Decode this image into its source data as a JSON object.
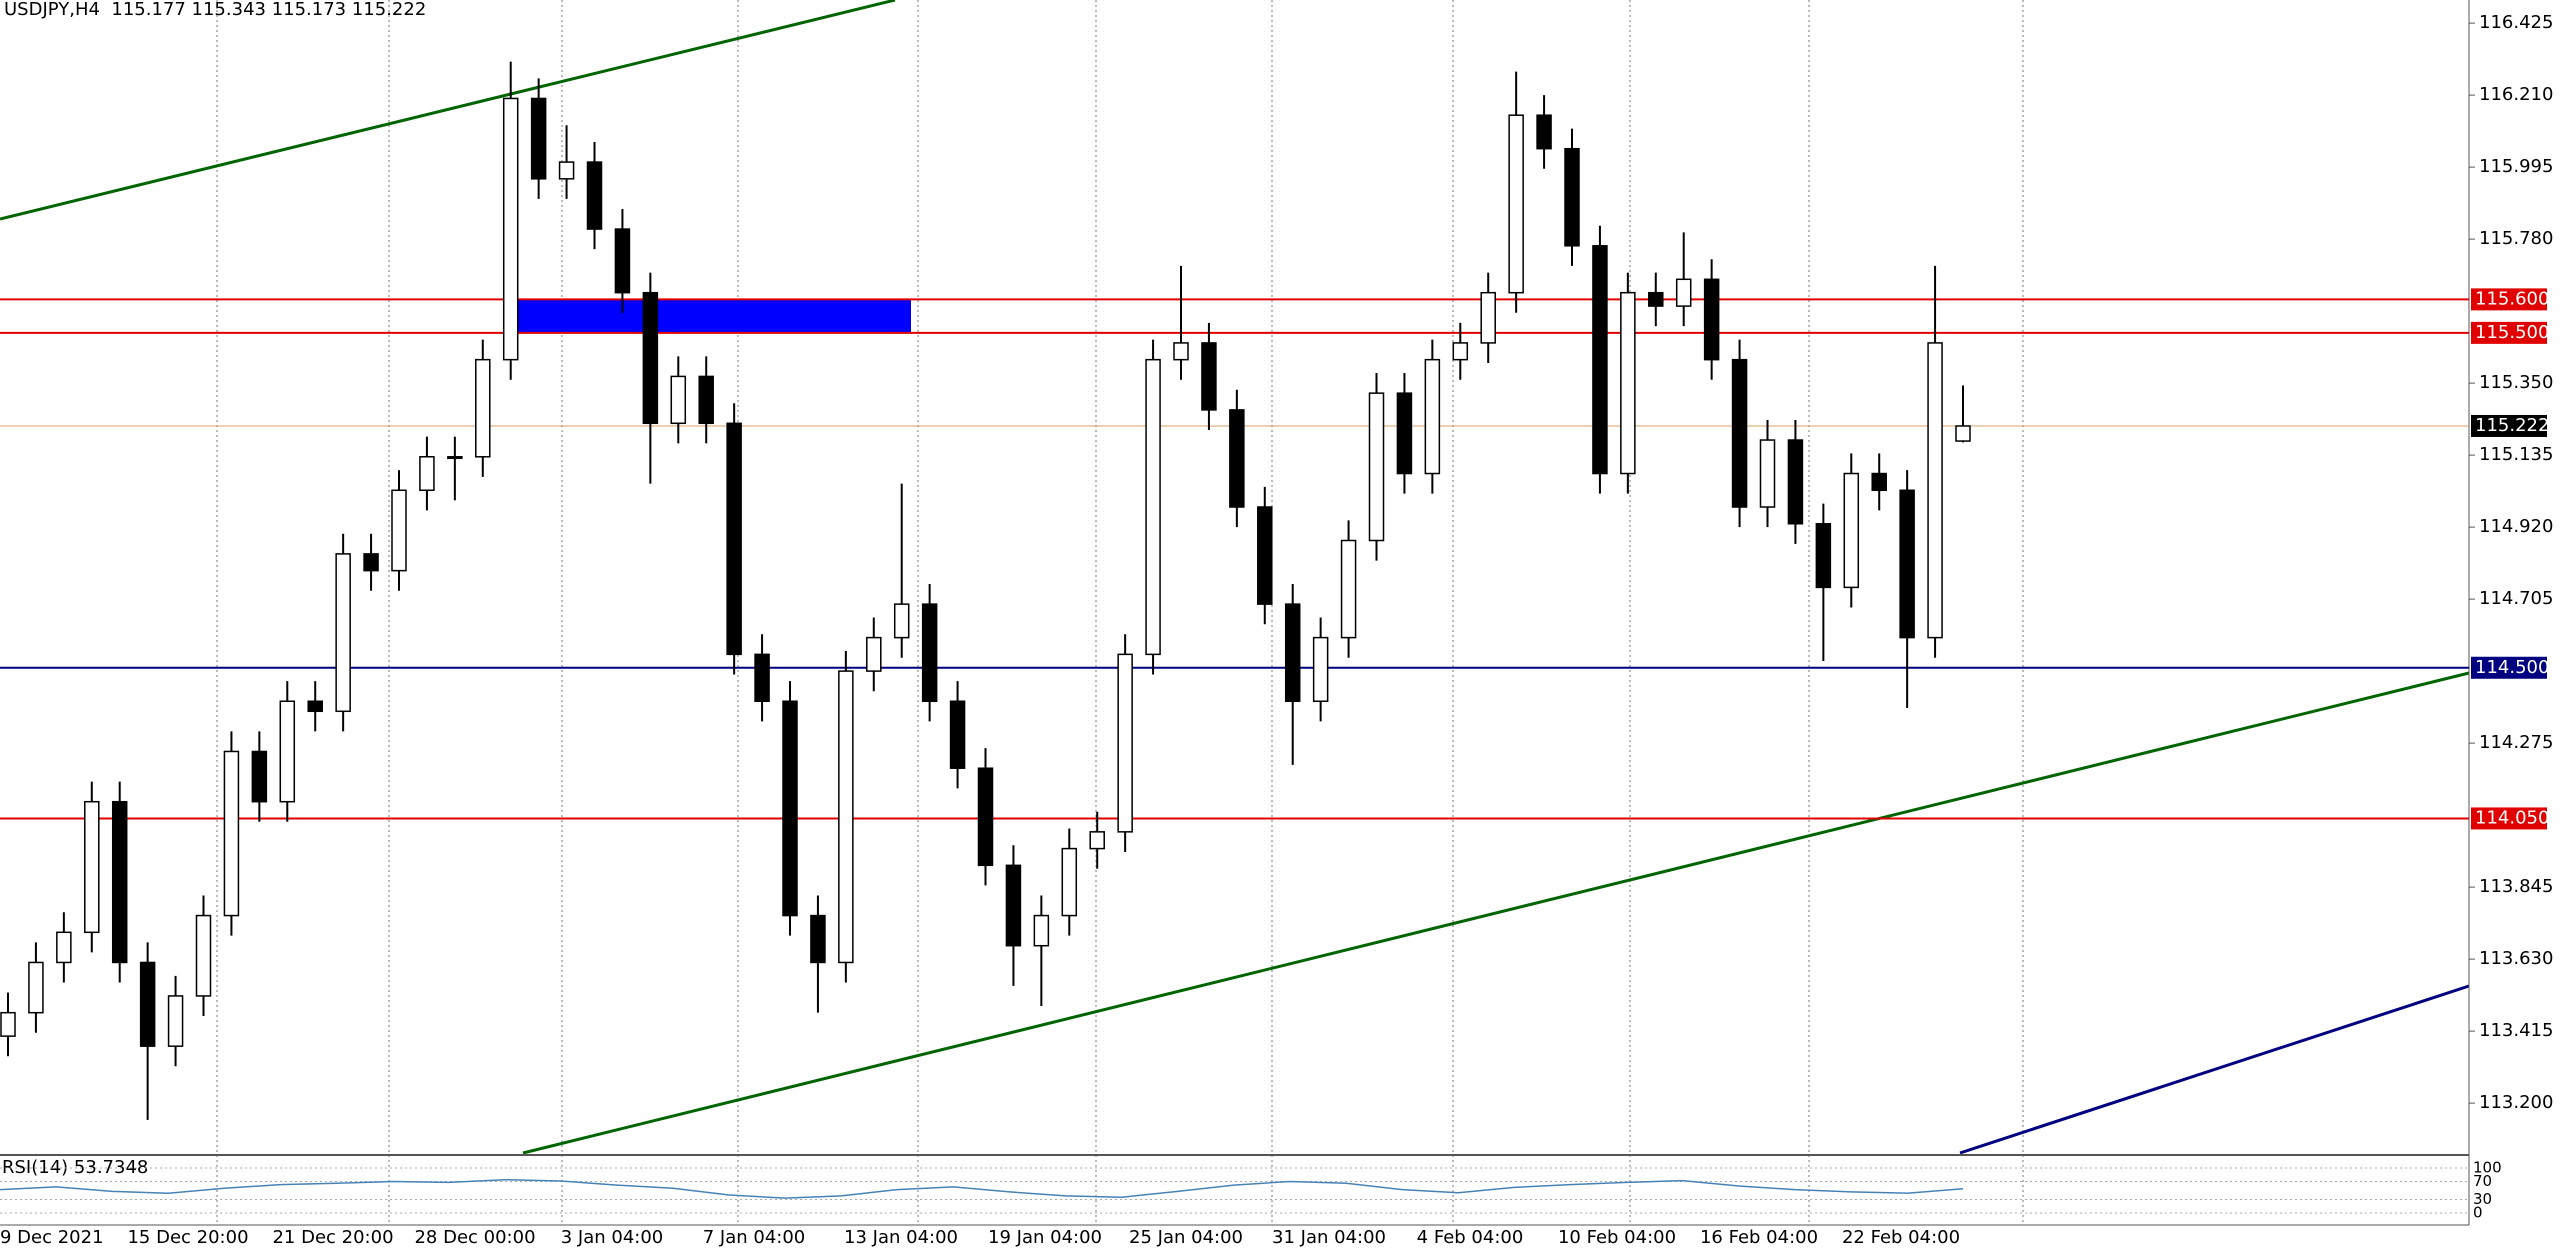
{
  "chart_data": {
    "type": "candlestick",
    "title": "USDJPY,H4  115.177 115.343 115.173 115.222",
    "open": [
      113.4,
      113.47,
      113.62,
      113.71,
      114.1,
      113.62,
      113.37,
      113.52,
      113.76,
      114.25,
      114.1,
      114.4,
      114.37,
      114.84,
      114.79,
      115.03,
      115.13,
      115.13,
      115.42,
      116.2,
      115.96,
      116.01,
      115.81,
      115.62,
      115.23,
      115.37,
      115.23,
      114.54,
      114.4,
      113.76,
      113.62,
      114.49,
      114.59,
      114.69,
      114.4,
      114.2,
      113.91,
      113.67,
      113.76,
      113.96,
      114.01,
      114.54,
      115.42,
      115.47,
      115.27,
      114.98,
      114.69,
      114.4,
      114.59,
      114.88,
      115.32,
      115.08,
      115.42,
      115.47,
      115.62,
      116.15,
      116.05,
      115.76,
      115.08,
      115.62,
      115.58,
      115.66,
      115.42,
      114.98,
      115.18,
      114.93,
      114.74,
      115.08,
      115.03,
      114.59,
      115.177
    ],
    "high": [
      113.53,
      113.68,
      113.77,
      114.16,
      114.16,
      113.68,
      113.58,
      113.82,
      114.31,
      114.31,
      114.46,
      114.46,
      114.9,
      114.9,
      115.09,
      115.19,
      115.19,
      115.48,
      116.31,
      116.26,
      116.12,
      116.07,
      115.87,
      115.68,
      115.43,
      115.43,
      115.29,
      114.6,
      114.46,
      113.82,
      114.55,
      114.65,
      115.05,
      114.75,
      114.46,
      114.26,
      113.97,
      113.82,
      114.02,
      114.07,
      114.6,
      115.48,
      115.7,
      115.53,
      115.33,
      115.04,
      114.75,
      114.65,
      114.94,
      115.38,
      115.38,
      115.48,
      115.53,
      115.68,
      116.28,
      116.21,
      116.11,
      115.82,
      115.68,
      115.68,
      115.8,
      115.72,
      115.48,
      115.24,
      115.24,
      114.99,
      115.14,
      115.14,
      115.09,
      115.7,
      115.343
    ],
    "low": [
      113.34,
      113.41,
      113.56,
      113.65,
      113.56,
      113.15,
      113.31,
      113.46,
      113.7,
      114.04,
      114.04,
      114.31,
      114.31,
      114.73,
      114.73,
      114.97,
      115.0,
      115.07,
      115.36,
      115.9,
      115.9,
      115.75,
      115.56,
      115.05,
      115.17,
      115.17,
      114.48,
      114.34,
      113.7,
      113.47,
      113.56,
      114.43,
      114.53,
      114.34,
      114.14,
      113.85,
      113.55,
      113.49,
      113.7,
      113.9,
      113.95,
      114.48,
      115.36,
      115.21,
      114.92,
      114.63,
      114.21,
      114.34,
      114.53,
      114.82,
      115.02,
      115.02,
      115.36,
      115.41,
      115.56,
      115.99,
      115.7,
      115.02,
      115.02,
      115.52,
      115.52,
      115.36,
      114.92,
      114.92,
      114.87,
      114.52,
      114.68,
      114.97,
      114.38,
      114.53,
      115.173
    ],
    "close": [
      113.47,
      113.62,
      113.71,
      114.1,
      113.62,
      113.37,
      113.52,
      113.76,
      114.25,
      114.1,
      114.4,
      114.37,
      114.84,
      114.79,
      115.03,
      115.13,
      115.13,
      115.42,
      116.2,
      115.96,
      116.01,
      115.81,
      115.62,
      115.23,
      115.37,
      115.23,
      114.54,
      114.4,
      113.76,
      113.62,
      114.49,
      114.59,
      114.69,
      114.4,
      114.2,
      113.91,
      113.67,
      113.76,
      113.96,
      114.01,
      114.54,
      115.42,
      115.47,
      115.27,
      114.98,
      114.69,
      114.4,
      114.59,
      114.88,
      115.32,
      115.08,
      115.42,
      115.47,
      115.62,
      116.15,
      116.05,
      115.76,
      115.08,
      115.62,
      115.58,
      115.66,
      115.42,
      114.98,
      115.18,
      114.93,
      114.74,
      115.08,
      115.03,
      114.59,
      115.47,
      115.222
    ],
    "bull_color": "#ffffff",
    "bear_color": "#000000",
    "ylim": [
      113.051,
      116.494
    ],
    "yticks": [
      116.425,
      {
        "value": 116.21,
        "label": "116.210"
      },
      115.995,
      {
        "value": 115.78,
        "label": "115.780"
      },
      {
        "value": 115.35,
        "label": "115.350"
      },
      115.135,
      {
        "value": 114.92,
        "label": "114.920"
      },
      114.705,
      114.275,
      113.845,
      {
        "value": 113.63,
        "label": "113.630"
      },
      113.415,
      {
        "value": 113.2,
        "label": "113.200"
      }
    ],
    "levels": [
      {
        "value": 115.6,
        "label": "115.600",
        "color": "#e00000"
      },
      {
        "value": 115.5,
        "label": "115.500",
        "color": "#e00000"
      },
      {
        "value": 114.5,
        "label": "114.500",
        "color": "#000080"
      },
      {
        "value": 114.05,
        "label": "114.050",
        "color": "#e00000"
      }
    ],
    "current_price": 115.222,
    "x_labels": [
      "9 Dec 2021",
      "15 Dec 20:00",
      "21 Dec 20:00",
      "28 Dec 00:00",
      "3 Jan 04:00",
      "7 Jan 04:00",
      "13 Jan 04:00",
      "19 Jan 04:00",
      "25 Jan 04:00",
      "31 Jan 04:00",
      "4 Feb 04:00",
      "10 Feb 04:00",
      "16 Feb 04:00",
      "22 Feb 04:00"
    ],
    "rsi": {
      "title": "RSI(14) 53.7348",
      "ylim": [
        0,
        100
      ],
      "yticks": [
        100,
        70,
        30,
        0
      ],
      "color": "#4682b4",
      "values": [
        52,
        58,
        48,
        44,
        55,
        63,
        66,
        70,
        68,
        74,
        71,
        62,
        55,
        40,
        33,
        38,
        52,
        58,
        47,
        38,
        35,
        48,
        62,
        70,
        66,
        52,
        45,
        57,
        63,
        68,
        72,
        60,
        52,
        47,
        44,
        54
      ]
    }
  }
}
